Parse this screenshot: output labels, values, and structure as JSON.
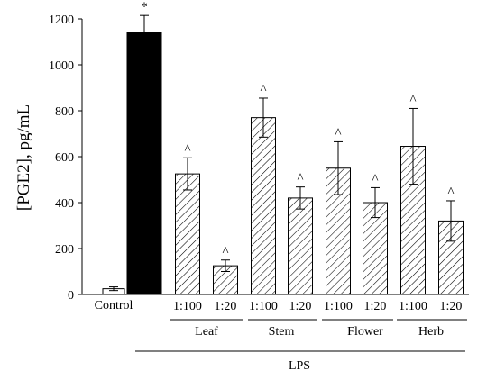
{
  "chart_data": {
    "type": "bar",
    "ylabel": "[PGE2], pg/mL",
    "ylim": [
      0,
      1200
    ],
    "yticks": [
      0,
      200,
      400,
      600,
      800,
      1000,
      1200
    ],
    "treatment_label": "LPS",
    "bars": [
      {
        "group": "Control",
        "ratio": "",
        "value": 25,
        "error": 8,
        "marker": "",
        "fill": "white"
      },
      {
        "group": "LPS",
        "ratio": "",
        "value": 1140,
        "error": 75,
        "marker": "*",
        "fill": "black"
      },
      {
        "group": "Leaf",
        "ratio": "1:100",
        "value": 525,
        "error": 70,
        "marker": "^",
        "fill": "hatch"
      },
      {
        "group": "Leaf",
        "ratio": "1:20",
        "value": 125,
        "error": 25,
        "marker": "^",
        "fill": "hatch"
      },
      {
        "group": "Stem",
        "ratio": "1:100",
        "value": 770,
        "error": 85,
        "marker": "^",
        "fill": "hatch"
      },
      {
        "group": "Stem",
        "ratio": "1:20",
        "value": 420,
        "error": 48,
        "marker": "^",
        "fill": "hatch"
      },
      {
        "group": "Flower",
        "ratio": "1:100",
        "value": 550,
        "error": 115,
        "marker": "^",
        "fill": "hatch"
      },
      {
        "group": "Flower",
        "ratio": "1:20",
        "value": 400,
        "error": 65,
        "marker": "^",
        "fill": "hatch"
      },
      {
        "group": "Herb",
        "ratio": "1:100",
        "value": 645,
        "error": 165,
        "marker": "^",
        "fill": "hatch"
      },
      {
        "group": "Herb",
        "ratio": "1:20",
        "value": 320,
        "error": 88,
        "marker": "^",
        "fill": "hatch"
      }
    ],
    "group_labels": [
      {
        "name": "Control"
      },
      {
        "name": "Leaf"
      },
      {
        "name": "Stem"
      },
      {
        "name": "Flower"
      },
      {
        "name": "Herb"
      }
    ]
  }
}
